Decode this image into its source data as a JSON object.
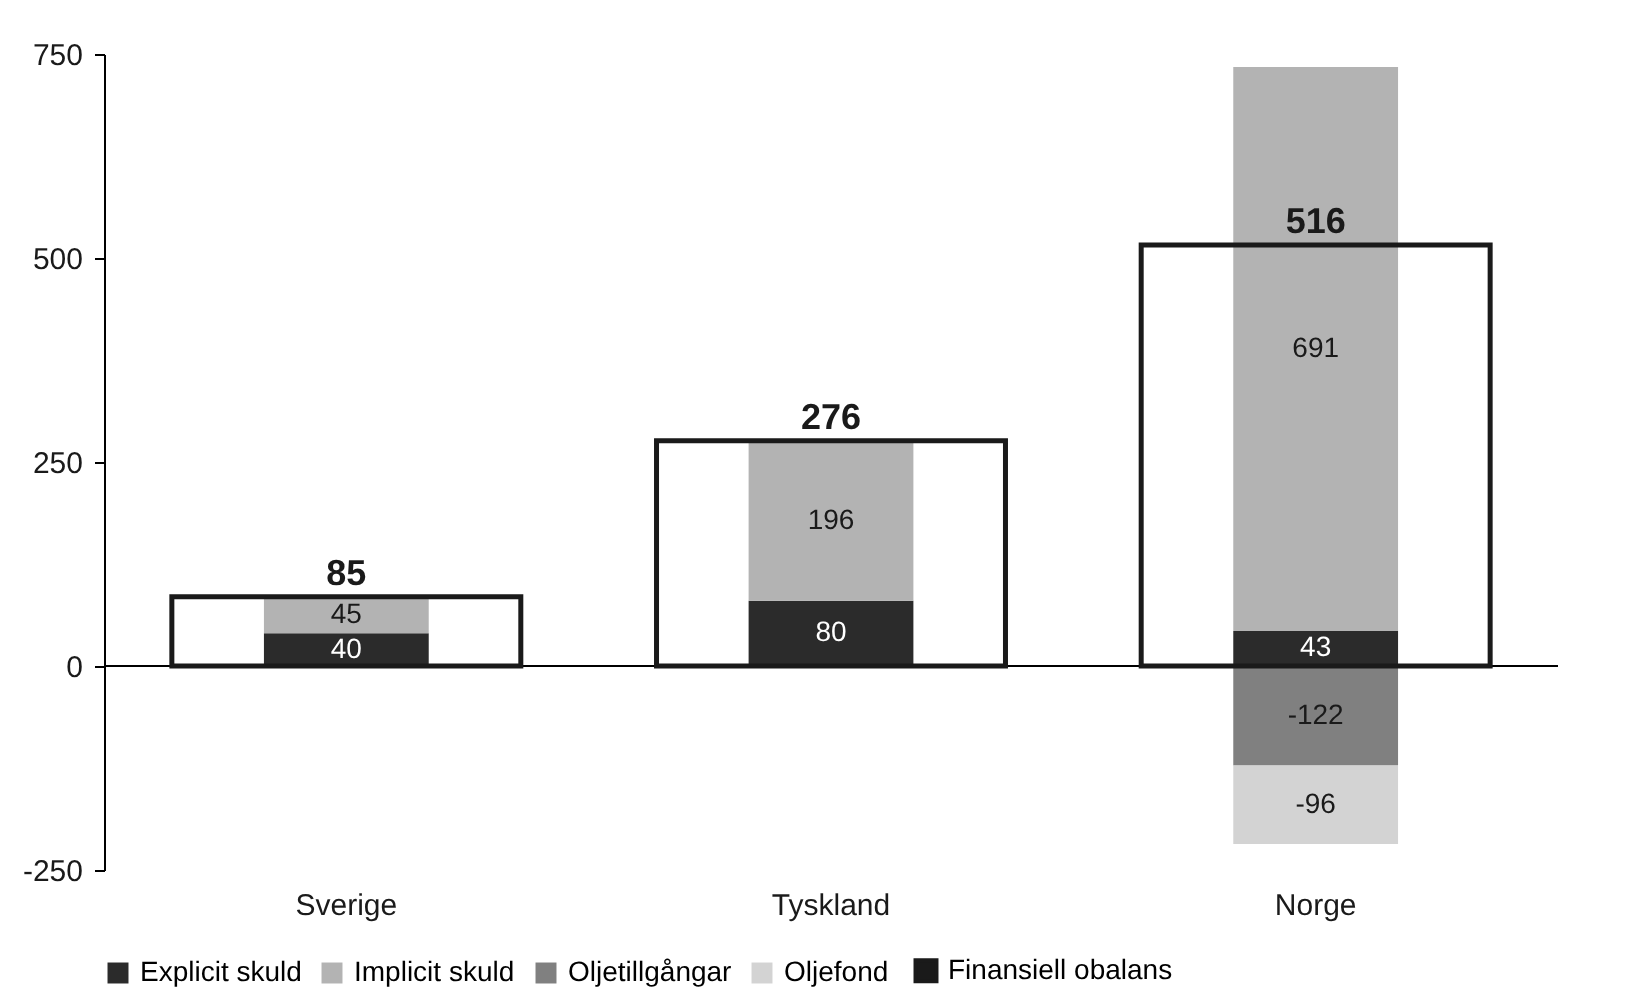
{
  "chart_data": {
    "type": "bar",
    "categories": [
      "Sverige",
      "Tyskland",
      "Norge"
    ],
    "series": [
      {
        "name": "Explicit skuld",
        "color": "#2b2b2b",
        "values": [
          40,
          80,
          43
        ],
        "base": [
          0,
          0,
          0
        ]
      },
      {
        "name": "Implicit skuld",
        "color": "#b3b3b3",
        "values": [
          45,
          196,
          691
        ],
        "base": [
          40,
          80,
          43
        ]
      },
      {
        "name": "Oljetillgångar",
        "color": "#808080",
        "values": [
          null,
          null,
          -122
        ],
        "base": [
          null,
          null,
          0
        ]
      },
      {
        "name": "Oljefond",
        "color": "#d3d3d3",
        "values": [
          null,
          null,
          -96
        ],
        "base": [
          null,
          null,
          -122
        ]
      },
      {
        "name": "Finansiell obalans",
        "color": "#1a1a1a",
        "type": "bar",
        "values": [
          85,
          276,
          516
        ],
        "base": [
          0,
          0,
          0
        ]
      }
    ],
    "data_labels": true,
    "ylim": [
      -250,
      750
    ],
    "yticks": [
      -250,
      0,
      250,
      500,
      750
    ],
    "legend": "bottom"
  }
}
